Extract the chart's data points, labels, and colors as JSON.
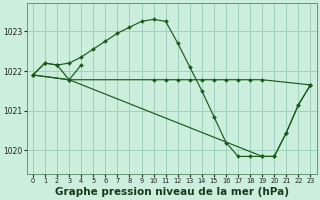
{
  "background_color": "#cceedd",
  "grid_color": "#99ccbb",
  "line_color": "#1a5c1a",
  "xlabel": "Graphe pression niveau de la mer (hPa)",
  "xlabel_fontsize": 7.5,
  "xlim": [
    -0.5,
    23.5
  ],
  "ylim": [
    1019.4,
    1023.7
  ],
  "yticks": [
    1020,
    1021,
    1022,
    1023
  ],
  "xticks": [
    0,
    1,
    2,
    3,
    4,
    5,
    6,
    7,
    8,
    9,
    10,
    11,
    12,
    13,
    14,
    15,
    16,
    17,
    18,
    19,
    20,
    21,
    22,
    23
  ],
  "series": [
    {
      "x": [
        0,
        1,
        2,
        3,
        4,
        5,
        6,
        7,
        8,
        9,
        10,
        11,
        12,
        13,
        14,
        15,
        16,
        17,
        18,
        19,
        20,
        21,
        22,
        23
      ],
      "y": [
        1021.9,
        1022.2,
        1022.15,
        1022.2,
        1022.35,
        1022.55,
        1022.75,
        1022.95,
        1023.1,
        1023.25,
        1023.3,
        1023.25,
        1022.7,
        1022.1,
        1021.5,
        1020.85,
        1020.2,
        1019.85,
        1019.85,
        1019.85,
        1019.85,
        1020.45,
        1021.15,
        1021.65
      ]
    },
    {
      "x": [
        0,
        3,
        10,
        11,
        12,
        13,
        14,
        15,
        16,
        17,
        18,
        19,
        23
      ],
      "y": [
        1021.9,
        1021.78,
        1021.78,
        1021.78,
        1021.78,
        1021.78,
        1021.78,
        1021.78,
        1021.78,
        1021.78,
        1021.78,
        1021.78,
        1021.65
      ]
    },
    {
      "x": [
        0,
        3,
        19,
        20,
        21,
        22,
        23
      ],
      "y": [
        1021.9,
        1021.78,
        1019.85,
        1019.85,
        1020.45,
        1021.15,
        1021.65
      ]
    },
    {
      "x": [
        0,
        1,
        2,
        3,
        4
      ],
      "y": [
        1021.9,
        1022.2,
        1022.15,
        1021.78,
        1022.15
      ]
    }
  ]
}
